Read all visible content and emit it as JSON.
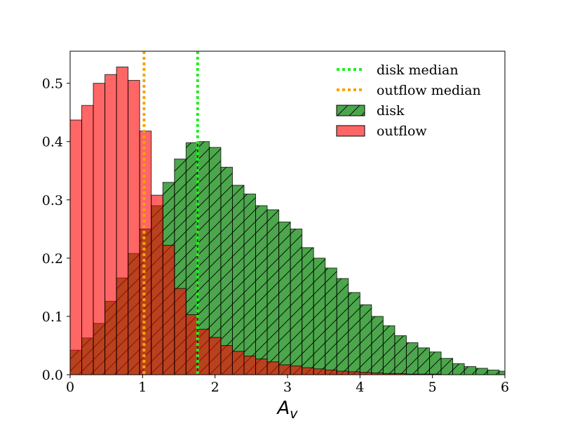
{
  "chart_data": {
    "type": "bar",
    "subtype": "overlaid-histogram",
    "title": "",
    "xlabel": "A",
    "xlabel_subscript": "v",
    "ylabel": "",
    "xlim": [
      0,
      6
    ],
    "ylim": [
      0,
      0.555
    ],
    "x_ticks": [
      0,
      1,
      2,
      3,
      4,
      5,
      6
    ],
    "y_ticks": [
      0.0,
      0.1,
      0.2,
      0.3,
      0.4,
      0.5
    ],
    "x_tick_labels": [
      "0",
      "1",
      "2",
      "3",
      "4",
      "5",
      "6"
    ],
    "y_tick_labels": [
      "0.0",
      "0.1",
      "0.2",
      "0.3",
      "0.4",
      "0.5"
    ],
    "bin_width": 0.16,
    "grid": false,
    "legend_position": "top-right",
    "bin_edges": [
      0,
      0.16,
      0.32,
      0.48,
      0.64,
      0.8,
      0.96,
      1.12,
      1.28,
      1.44,
      1.6,
      1.76,
      1.92,
      2.08,
      2.24,
      2.4,
      2.56,
      2.72,
      2.88,
      3.04,
      3.2,
      3.36,
      3.52,
      3.68,
      3.84,
      4.0,
      4.16,
      4.32,
      4.48,
      4.64,
      4.8,
      4.96,
      5.12,
      5.28,
      5.44,
      5.6,
      5.76,
      5.92,
      6.08
    ],
    "series": [
      {
        "name": "disk",
        "color": "#008000",
        "alpha": 0.7,
        "hatch": "/",
        "values": [
          0.042,
          0.063,
          0.088,
          0.126,
          0.166,
          0.208,
          0.25,
          0.29,
          0.33,
          0.37,
          0.398,
          0.4,
          0.39,
          0.356,
          0.325,
          0.31,
          0.29,
          0.283,
          0.262,
          0.25,
          0.218,
          0.2,
          0.183,
          0.165,
          0.141,
          0.12,
          0.1,
          0.084,
          0.067,
          0.055,
          0.046,
          0.039,
          0.028,
          0.019,
          0.014,
          0.011,
          0.008,
          0.006
        ]
      },
      {
        "name": "outflow",
        "color": "#ff0000",
        "alpha": 0.6,
        "values": [
          0.437,
          0.462,
          0.5,
          0.515,
          0.528,
          0.505,
          0.418,
          0.308,
          0.222,
          0.148,
          0.103,
          0.078,
          0.064,
          0.05,
          0.04,
          0.032,
          0.027,
          0.022,
          0.017,
          0.015,
          0.012,
          0.01,
          0.008,
          0.006,
          0.005,
          0.004,
          0.003,
          0.002,
          0.002,
          0.001,
          0.001,
          0.001,
          0.0,
          0.0,
          0.0,
          0.0,
          0.0,
          0.0
        ]
      }
    ],
    "medians": [
      {
        "name": "disk median",
        "x": 1.76,
        "color": "#22ee22"
      },
      {
        "name": "outflow median",
        "x": 1.02,
        "color": "#f5a30b"
      }
    ],
    "legend": [
      {
        "label": "disk median",
        "kind": "line",
        "color": "#22ee22"
      },
      {
        "label": "outflow median",
        "kind": "line",
        "color": "#f5a30b"
      },
      {
        "label": "disk",
        "kind": "patch",
        "color": "#008000",
        "hatch": "/"
      },
      {
        "label": "outflow",
        "kind": "patch",
        "color": "#ff0000"
      }
    ]
  }
}
